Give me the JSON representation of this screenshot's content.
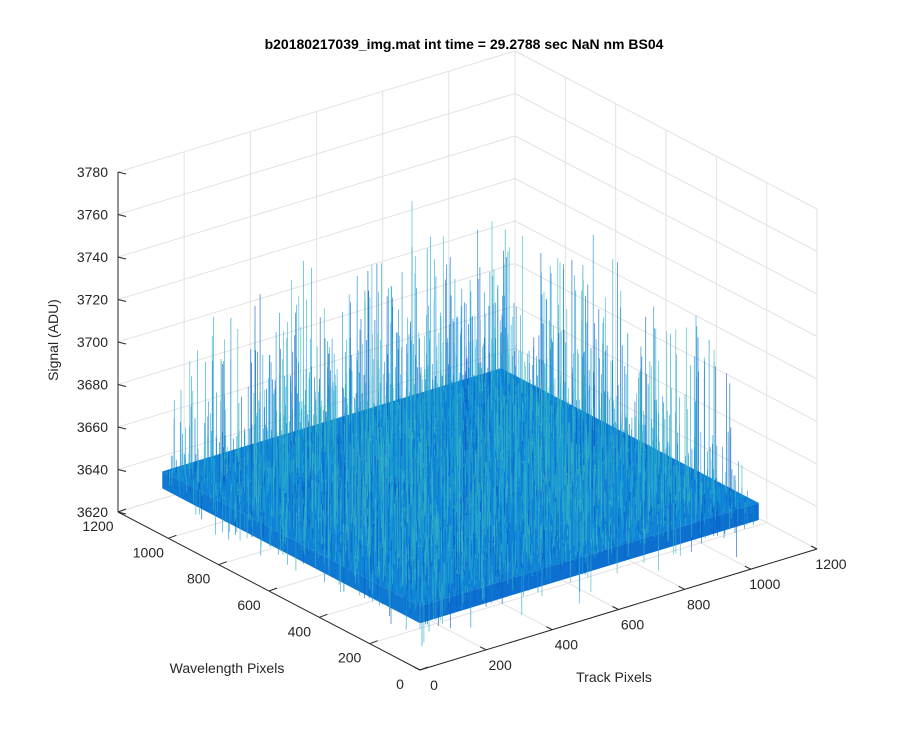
{
  "chart_data": {
    "type": "surface",
    "title": "b20180217039_img.mat int time = 29.2788 sec  NaN nm BS04",
    "xlabel": "Track Pixels",
    "ylabel": "Wavelength Pixels",
    "zlabel": "Signal (ADU)",
    "xlim": [
      0,
      1200
    ],
    "ylim": [
      0,
      1200
    ],
    "zlim": [
      3620,
      3780
    ],
    "xticks": [
      "0",
      "200",
      "400",
      "600",
      "800",
      "1000",
      "1200"
    ],
    "yticks": [
      "0",
      "200",
      "400",
      "600",
      "800",
      "1000",
      "1200"
    ],
    "zticks": [
      "3620",
      "3640",
      "3660",
      "3680",
      "3700",
      "3720",
      "3740",
      "3760",
      "3780"
    ],
    "grid": true,
    "surface": {
      "x_range": [
        0,
        1024
      ],
      "y_range": [
        0,
        1024
      ],
      "mean_signal": 3650,
      "noise_min": 3625,
      "noise_max": 3745,
      "colormap": [
        "#0a5fc7",
        "#1288d8",
        "#1aa6d6",
        "#38b5c0"
      ]
    }
  }
}
